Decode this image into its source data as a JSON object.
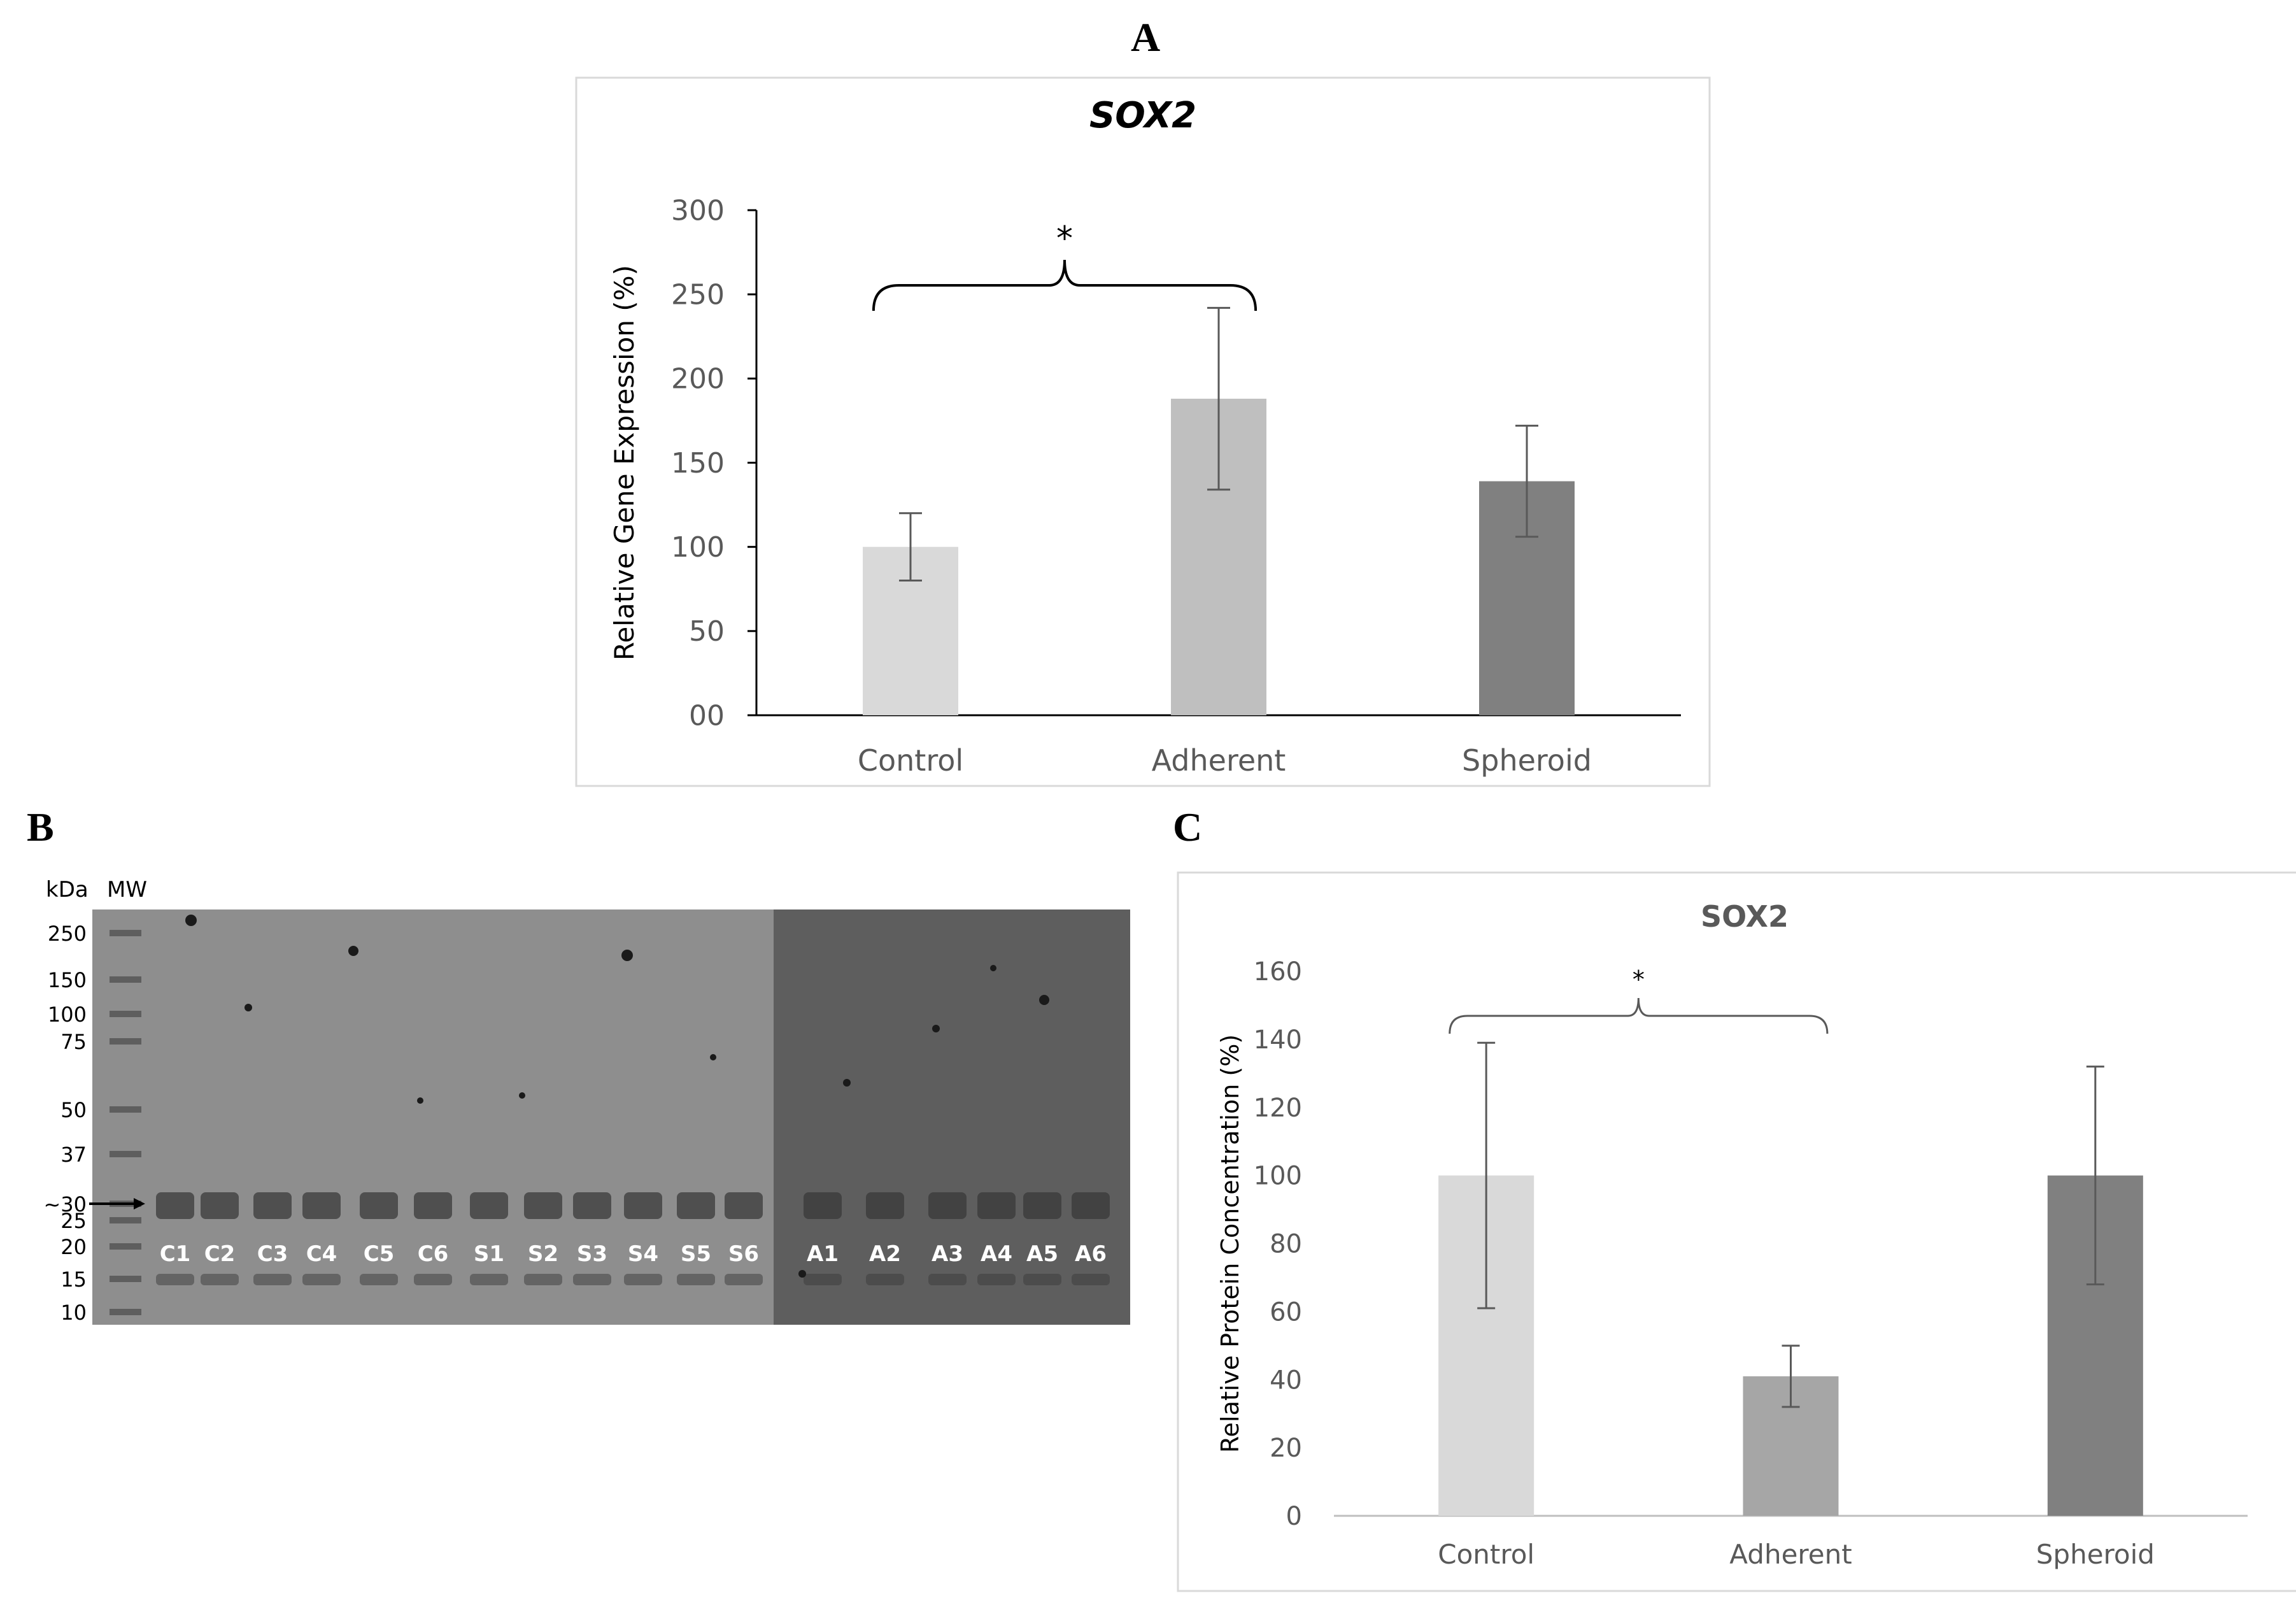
{
  "panels": {
    "a": {
      "letter": "A"
    },
    "b": {
      "letter": "B"
    },
    "c": {
      "letter": "C"
    }
  },
  "chart_data": [
    {
      "id": "A",
      "type": "bar",
      "title": "SOX2",
      "title_style": "bold-italic",
      "xlabel": "",
      "ylabel": "Relative Gene Expression (%)",
      "categories": [
        "Control",
        "Adherent",
        "Spheroid"
      ],
      "values": [
        100,
        188,
        139
      ],
      "errors": [
        20,
        54,
        33
      ],
      "colors": [
        "#d9d9d9",
        "#bfbfbf",
        "#808080"
      ],
      "ylim": [
        0,
        300
      ],
      "ytick_labels": [
        "00",
        "50",
        "100",
        "150",
        "200",
        "250",
        "300"
      ],
      "grid": false,
      "significance": {
        "from": 0,
        "to": 1,
        "label": "*"
      }
    },
    {
      "id": "C",
      "type": "bar",
      "title": "SOX2",
      "title_style": "bold",
      "xlabel": "",
      "ylabel": "Relative Protein Concentration (%)",
      "categories": [
        "Control",
        "Adherent",
        "Spheroid"
      ],
      "values": [
        100,
        41,
        100
      ],
      "errors": [
        39,
        9,
        32
      ],
      "colors": [
        "#d9d9d9",
        "#a6a6a6",
        "#808080"
      ],
      "ylim": [
        0,
        160
      ],
      "ytick_labels": [
        "0",
        "20",
        "40",
        "60",
        "80",
        "100",
        "120",
        "140",
        "160"
      ],
      "grid": false,
      "significance": {
        "from": 0,
        "to": 1,
        "label": "*"
      }
    }
  ],
  "western_blot": {
    "header_kda": "kDa",
    "header_mw": "MW",
    "markers": [
      "250",
      "150",
      "100",
      "75",
      "50",
      "37",
      "~30",
      "25",
      "20",
      "15",
      "10"
    ],
    "lanes": [
      "C1",
      "C2",
      "C3",
      "C4",
      "C5",
      "C6",
      "S1",
      "S2",
      "S3",
      "S4",
      "S5",
      "S6",
      "A1",
      "A2",
      "A3",
      "A4",
      "A5",
      "A6"
    ],
    "colors": {
      "gel_light": "#8e8e8e",
      "gel_dark": "#5e5e5e",
      "band": "#3a3a3a",
      "lane_label": "#ffffff"
    }
  }
}
